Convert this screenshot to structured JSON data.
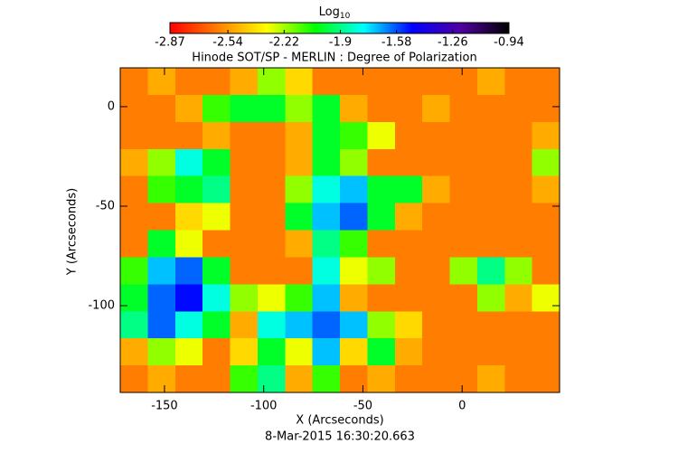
{
  "chart_data": {
    "type": "heatmap",
    "title": "Hinode SOT/SP - MERLIN : Degree of Polarization",
    "x_label": "X (Arcseconds)",
    "y_label": "Y (Arcseconds)",
    "footer": "8-Mar-2015 16:30:20.663",
    "colorbar_label": "Log",
    "colorbar_label_sub": "10",
    "colormap": [
      "#ff0000",
      "#ff8000",
      "#ffff00",
      "#00ff00",
      "#00ffff",
      "#0000ff",
      "#5000a0",
      "#000000"
    ],
    "zlim": [
      -2.87,
      -0.94
    ],
    "zticks": [
      -2.87,
      -2.54,
      -2.22,
      -1.9,
      -1.58,
      -1.26,
      -0.94
    ],
    "xlim": [
      -172.3,
      49.1
    ],
    "ylim": [
      -143.6,
      19.5
    ],
    "xticks": [
      -150,
      -100,
      -50,
      0
    ],
    "yticks": [
      0,
      -50,
      -100
    ],
    "z": [
      [
        -2.6,
        -2.5,
        -2.6,
        -2.6,
        -2.5,
        -2.2,
        -2.4,
        -2.6,
        -2.6,
        -2.6,
        -2.6,
        -2.6,
        -2.6,
        -2.5,
        -2.6,
        -2.6
      ],
      [
        -2.6,
        -2.6,
        -2.5,
        -2.1,
        -2.0,
        -2.0,
        -2.2,
        -2.0,
        -2.5,
        -2.6,
        -2.6,
        -2.5,
        -2.6,
        -2.6,
        -2.6,
        -2.6
      ],
      [
        -2.6,
        -2.6,
        -2.6,
        -2.5,
        -2.6,
        -2.6,
        -2.5,
        -2.0,
        -2.1,
        -2.3,
        -2.6,
        -2.6,
        -2.6,
        -2.6,
        -2.6,
        -2.5
      ],
      [
        -2.5,
        -2.2,
        -1.8,
        -2.0,
        -2.6,
        -2.6,
        -2.5,
        -2.0,
        -2.2,
        -2.6,
        -2.6,
        -2.6,
        -2.6,
        -2.6,
        -2.6,
        -2.2
      ],
      [
        -2.6,
        -2.1,
        -2.0,
        -1.9,
        -2.6,
        -2.6,
        -2.2,
        -1.8,
        -1.7,
        -2.0,
        -2.0,
        -2.5,
        -2.6,
        -2.6,
        -2.6,
        -2.5
      ],
      [
        -2.6,
        -2.6,
        -2.4,
        -2.3,
        -2.6,
        -2.6,
        -2.0,
        -1.7,
        -1.6,
        -2.0,
        -2.5,
        -2.6,
        -2.6,
        -2.6,
        -2.6,
        -2.6
      ],
      [
        -2.6,
        -2.0,
        -2.3,
        -2.6,
        -2.6,
        -2.6,
        -2.5,
        -1.9,
        -2.1,
        -2.6,
        -2.6,
        -2.6,
        -2.6,
        -2.6,
        -2.6,
        -2.6
      ],
      [
        -2.1,
        -1.7,
        -1.6,
        -2.0,
        -2.6,
        -2.6,
        -2.6,
        -1.8,
        -2.3,
        -2.2,
        -2.6,
        -2.6,
        -2.2,
        -1.9,
        -2.2,
        -2.6
      ],
      [
        -2.0,
        -1.6,
        -1.5,
        -1.8,
        -2.2,
        -2.3,
        -2.1,
        -1.7,
        -2.5,
        -2.6,
        -2.6,
        -2.6,
        -2.6,
        -2.2,
        -2.5,
        -2.3
      ],
      [
        -1.9,
        -1.6,
        -1.8,
        -2.0,
        -2.5,
        -1.8,
        -1.7,
        -1.6,
        -1.7,
        -2.2,
        -2.4,
        -2.6,
        -2.6,
        -2.6,
        -2.6,
        -2.6
      ],
      [
        -2.5,
        -2.2,
        -2.3,
        -2.6,
        -2.4,
        -2.0,
        -2.3,
        -1.7,
        -2.4,
        -2.0,
        -2.5,
        -2.6,
        -2.6,
        -2.6,
        -2.6,
        -2.6
      ],
      [
        -2.6,
        -2.5,
        -2.6,
        -2.6,
        -2.1,
        -1.9,
        -2.5,
        -2.1,
        -2.6,
        -2.5,
        -2.6,
        -2.6,
        -2.6,
        -2.5,
        -2.6,
        -2.6
      ]
    ]
  }
}
